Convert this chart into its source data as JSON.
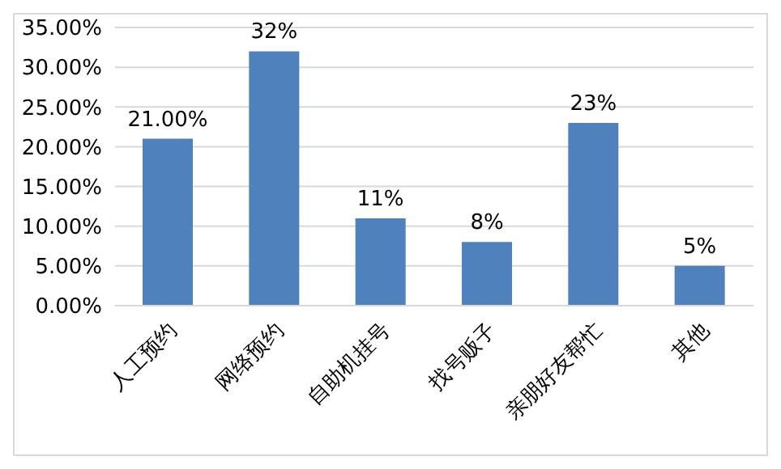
{
  "chart_data": {
    "type": "bar",
    "categories": [
      "人工预约",
      "网络预约",
      "自助机挂号",
      "找号贩子",
      "亲朋好友帮忙",
      "其他"
    ],
    "values": [
      21,
      32,
      11,
      8,
      23,
      5
    ],
    "value_labels": [
      "21.00%",
      "32%",
      "11%",
      "8%",
      "23%",
      "5%"
    ],
    "color": "#4f81bd",
    "ylim": [
      0,
      35
    ],
    "yticks": [
      {
        "value": 0,
        "label": "0.00%"
      },
      {
        "value": 5,
        "label": "5.00%"
      },
      {
        "value": 10,
        "label": "10.00%"
      },
      {
        "value": 15,
        "label": "15.00%"
      },
      {
        "value": 20,
        "label": "20.00%"
      },
      {
        "value": 25,
        "label": "25.00%"
      },
      {
        "value": 30,
        "label": "30.00%"
      },
      {
        "value": 35,
        "label": "35.00%"
      }
    ],
    "grid": "y"
  }
}
